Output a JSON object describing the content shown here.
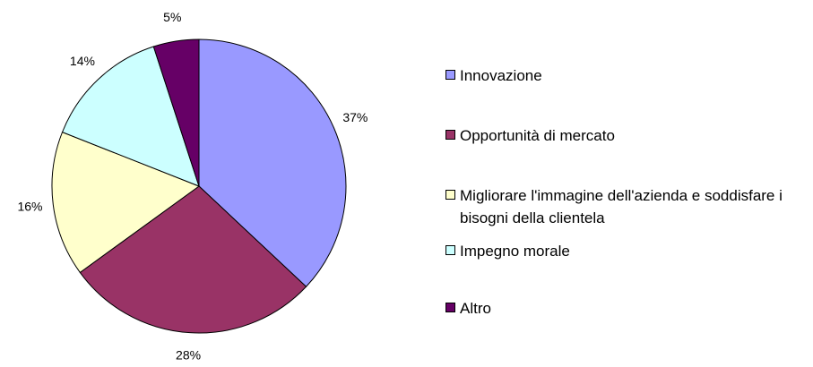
{
  "chart_data": {
    "type": "pie",
    "categories": [
      "Innovazione",
      "Opportunità di mercato",
      "Migliorare l'immagine dell'azienda e soddisfare i bisogni della clientela",
      "Impegno morale",
      "Altro"
    ],
    "values": [
      37,
      28,
      16,
      14,
      5
    ],
    "value_labels": [
      "37%",
      "28%",
      "16%",
      "14%",
      "5%"
    ],
    "colors": [
      "#9999ff",
      "#993366",
      "#ffffcc",
      "#ccffff",
      "#660066"
    ],
    "legend": "right"
  }
}
